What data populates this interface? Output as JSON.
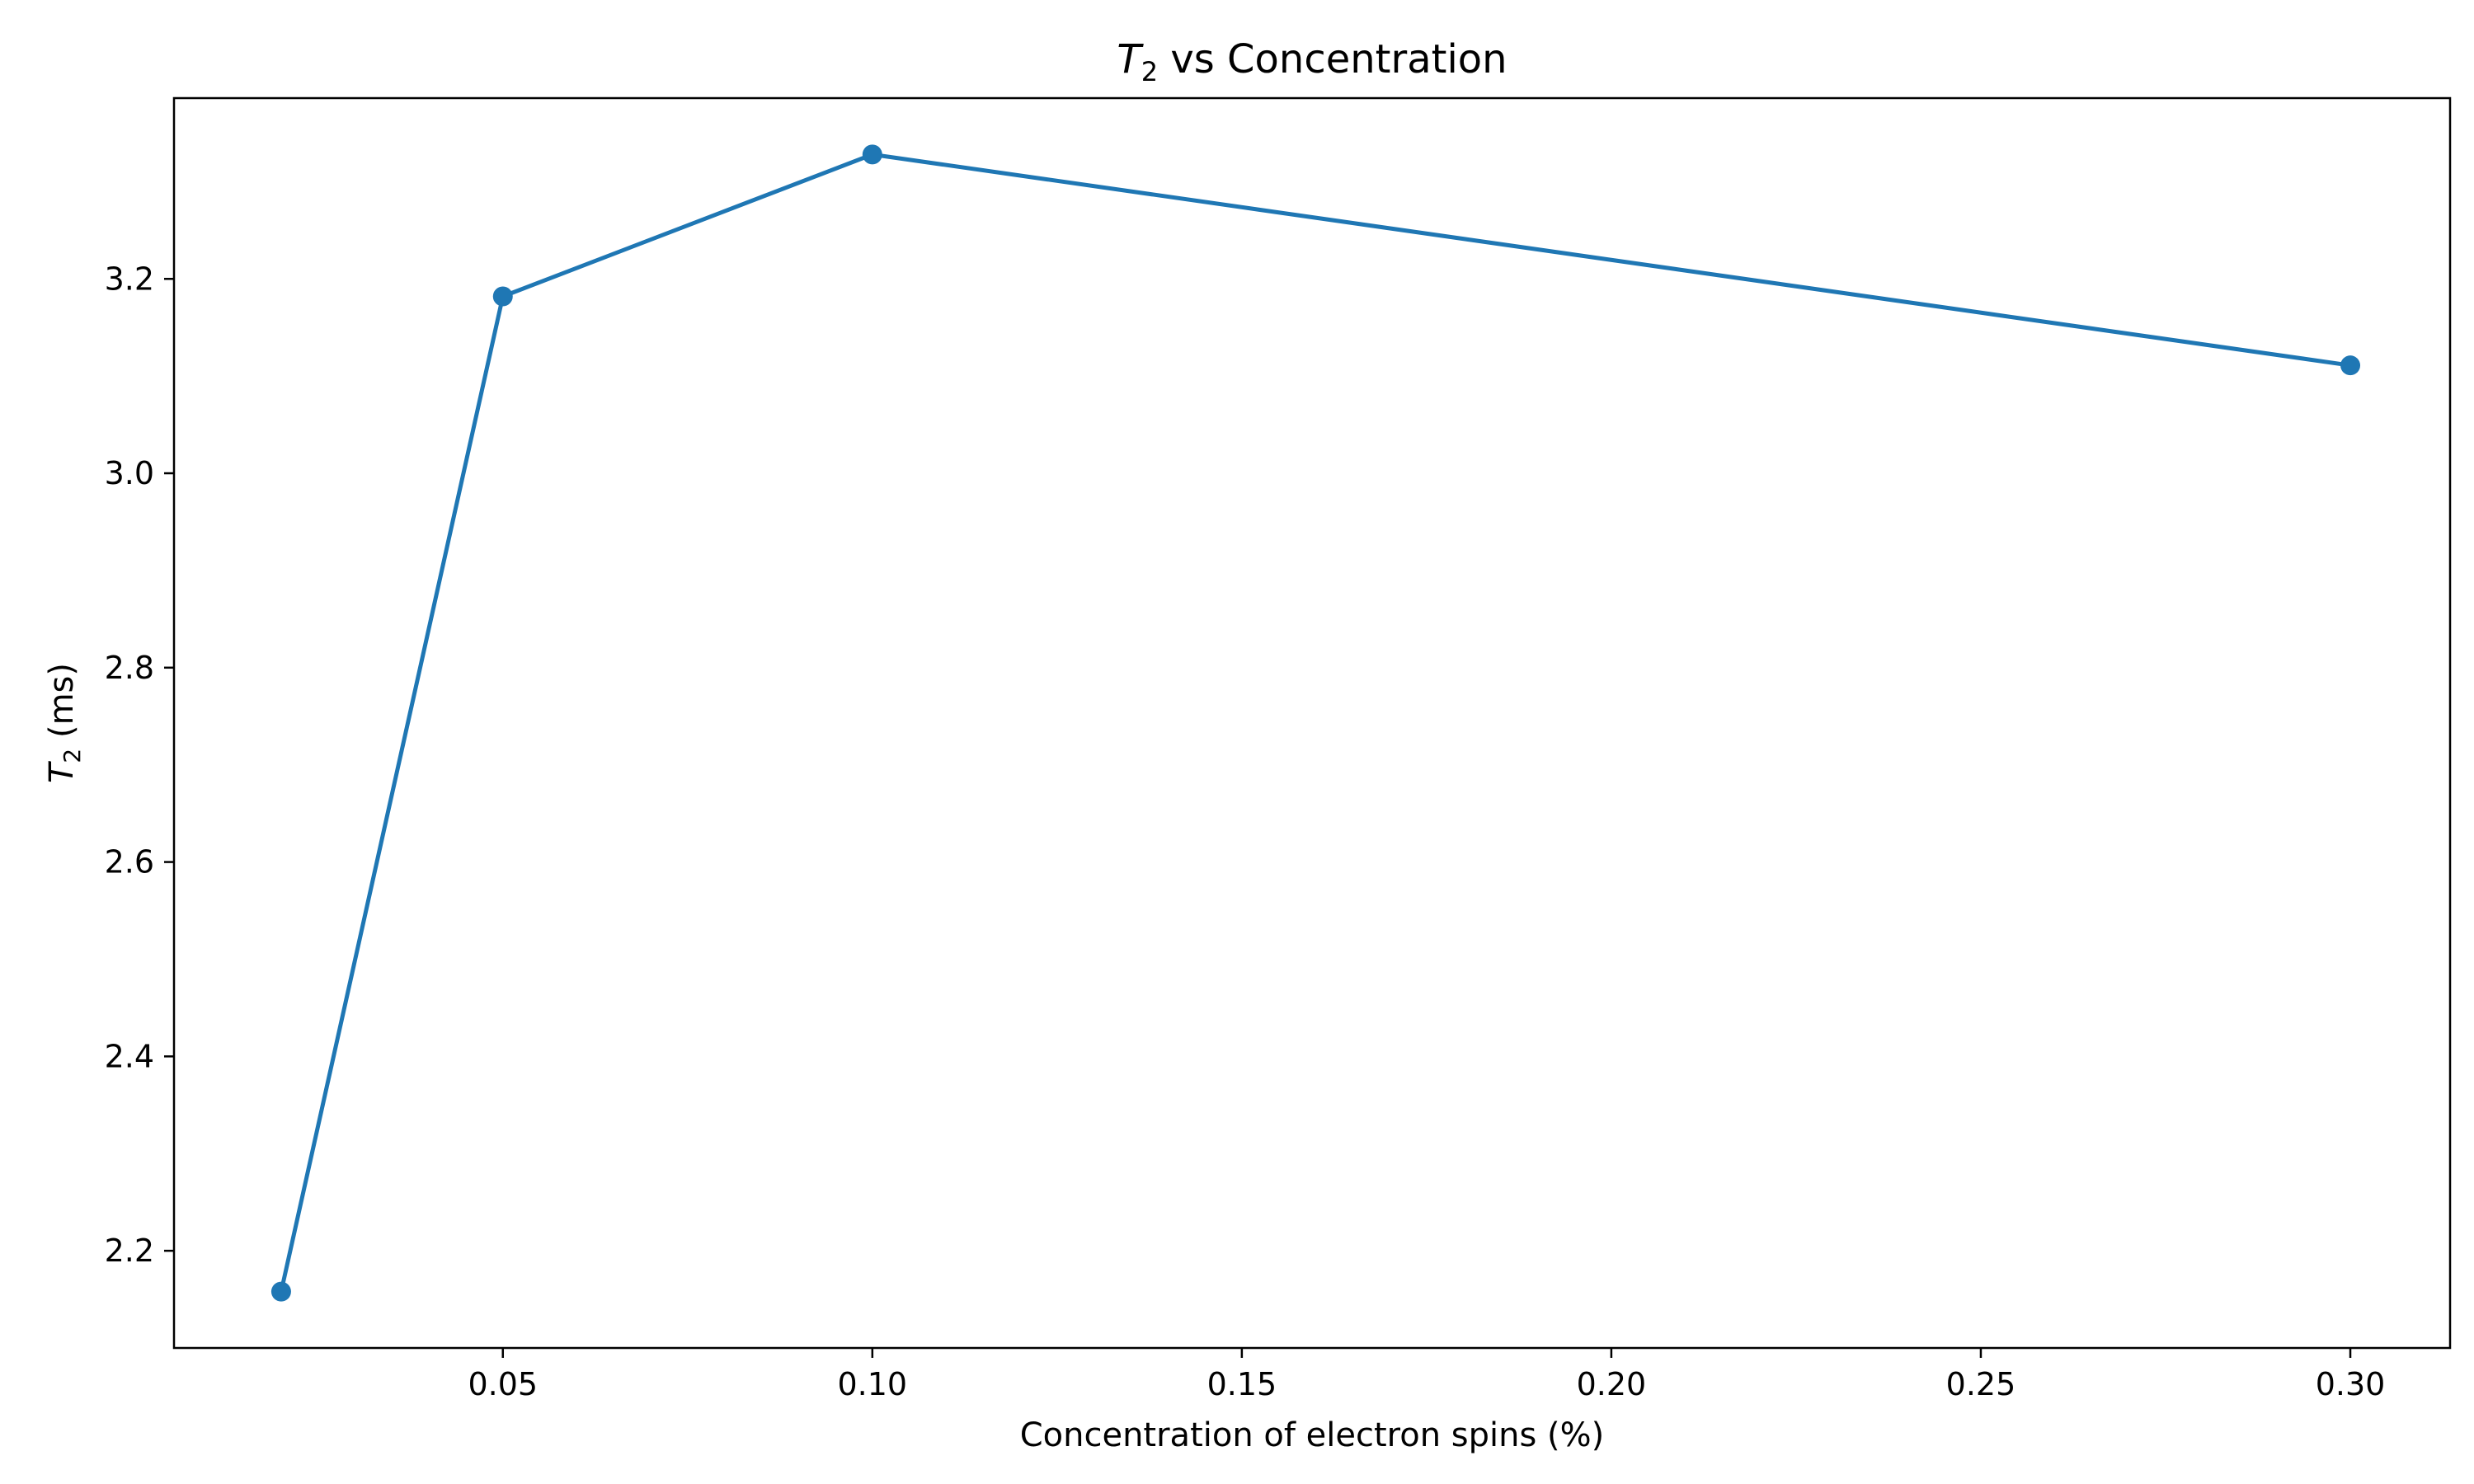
{
  "chart_data": {
    "type": "line",
    "title": {
      "sym": "T",
      "sub": "2",
      "rest": " vs Concentration"
    },
    "xlabel": "Concentration of electron spins (%)",
    "ylabel": {
      "sym": "T",
      "sub": "2",
      "rest": " (ms)"
    },
    "x": [
      0.02,
      0.05,
      0.1,
      0.3
    ],
    "series": [
      {
        "values": [
          2.158,
          3.182,
          3.328,
          3.111
        ],
        "color": "#1f77b4",
        "marker": "circle"
      }
    ],
    "xlim": [
      0.0055,
      0.3135
    ],
    "ylim": [
      2.1,
      3.386
    ],
    "xticks": [
      0.05,
      0.1,
      0.15,
      0.2,
      0.25,
      0.3
    ],
    "xtick_labels": [
      "0.05",
      "0.10",
      "0.15",
      "0.20",
      "0.25",
      "0.30"
    ],
    "yticks": [
      2.2,
      2.4,
      2.6,
      2.8,
      3.0,
      3.2
    ],
    "ytick_labels": [
      "2.2",
      "2.4",
      "2.6",
      "2.8",
      "3.0",
      "3.2"
    ],
    "grid": false,
    "legend": false
  }
}
